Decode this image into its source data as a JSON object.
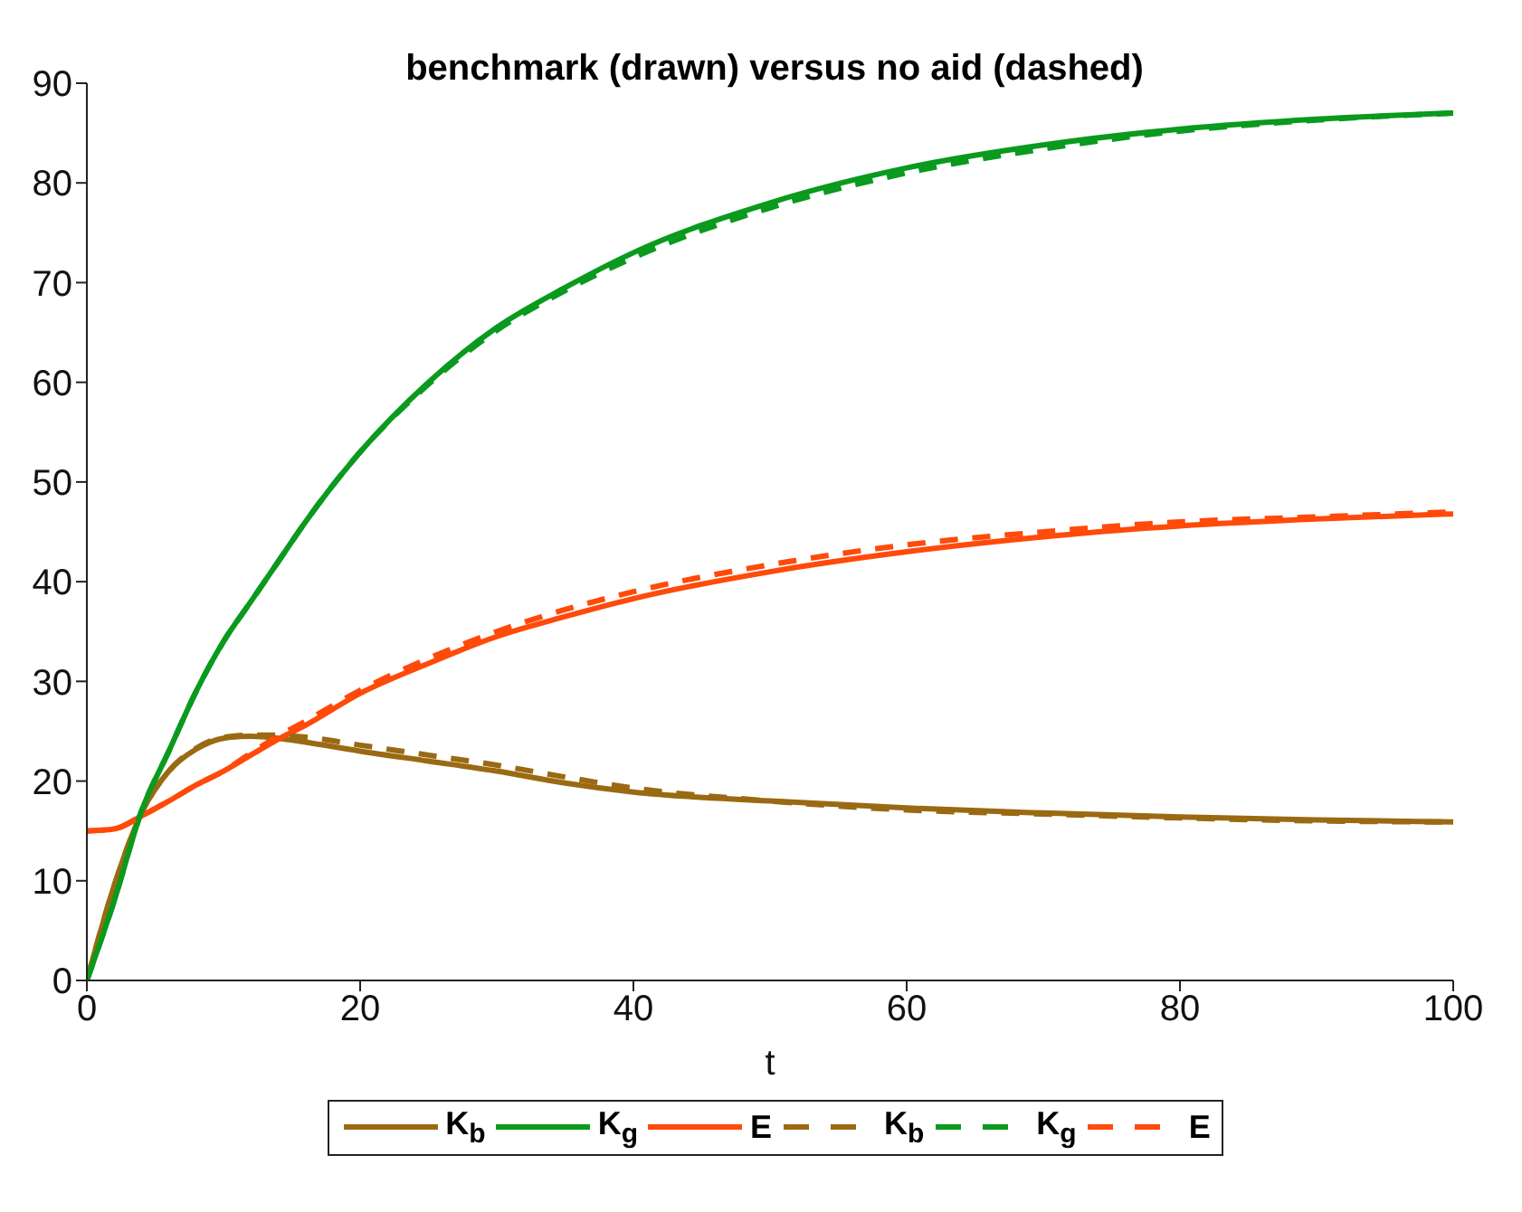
{
  "chart_data": {
    "type": "line",
    "title": "benchmark (drawn) versus no aid (dashed)",
    "xlabel": "t",
    "x": [
      0,
      2,
      4,
      6,
      8,
      10,
      12,
      14,
      16,
      20,
      25,
      30,
      35,
      40,
      50,
      60,
      70,
      80,
      90,
      100
    ],
    "xlim": [
      0,
      100
    ],
    "xticks": [
      0,
      20,
      40,
      60,
      80,
      100
    ],
    "ylim": [
      0,
      90
    ],
    "yticks": [
      0,
      10,
      20,
      30,
      40,
      50,
      60,
      70,
      80,
      90
    ],
    "grid": false,
    "legend": "bottom",
    "marker": "none",
    "series": [
      {
        "name": "K$_{b}$",
        "color": "#9a6a12",
        "line_style": "solid",
        "values": [
          0,
          9.5,
          16.8,
          21,
          23.2,
          24.3,
          24.5,
          24.3,
          23.9,
          23,
          22,
          21,
          19.8,
          18.9,
          18,
          17.3,
          16.8,
          16.4,
          16.1,
          15.9
        ]
      },
      {
        "name": "K$_{g}$",
        "color": "#0a9a1e",
        "line_style": "solid",
        "values": [
          0,
          8,
          17,
          23,
          29,
          34,
          38,
          42,
          46,
          53,
          60,
          65.5,
          69.5,
          73,
          78,
          81.5,
          83.8,
          85.4,
          86.4,
          87
        ]
      },
      {
        "name": "E",
        "color": "#ff4a0a",
        "line_style": "solid",
        "values": [
          15,
          15.2,
          16.5,
          18,
          19.6,
          21,
          22.6,
          24.2,
          25.6,
          28.8,
          31.8,
          34.5,
          36.5,
          38.3,
          41,
          43,
          44.5,
          45.6,
          46.3,
          46.8
        ]
      },
      {
        "name": "K$_{b}$",
        "color": "#9a6a12",
        "line_style": "dashed",
        "values": [
          0,
          9.5,
          16.8,
          21,
          23.3,
          24.4,
          24.6,
          24.6,
          24.4,
          23.6,
          22.6,
          21.6,
          20.4,
          19.3,
          18,
          17.1,
          16.7,
          16.3,
          16,
          15.9
        ]
      },
      {
        "name": "K$_{g}$",
        "color": "#0a9a1e",
        "line_style": "dashed",
        "values": [
          0,
          8,
          17,
          23,
          29,
          34,
          38,
          42,
          46,
          53,
          59.8,
          65.2,
          69.2,
          72.5,
          77.5,
          81,
          83.4,
          85.2,
          86.3,
          87
        ]
      },
      {
        "name": "E",
        "color": "#ff4a0a",
        "line_style": "dashed",
        "values": [
          15,
          15.2,
          16.5,
          18,
          19.6,
          21,
          22.8,
          24.5,
          26,
          29.1,
          32.3,
          35,
          37.2,
          39,
          41.7,
          43.7,
          45,
          46,
          46.5,
          47
        ]
      }
    ]
  }
}
